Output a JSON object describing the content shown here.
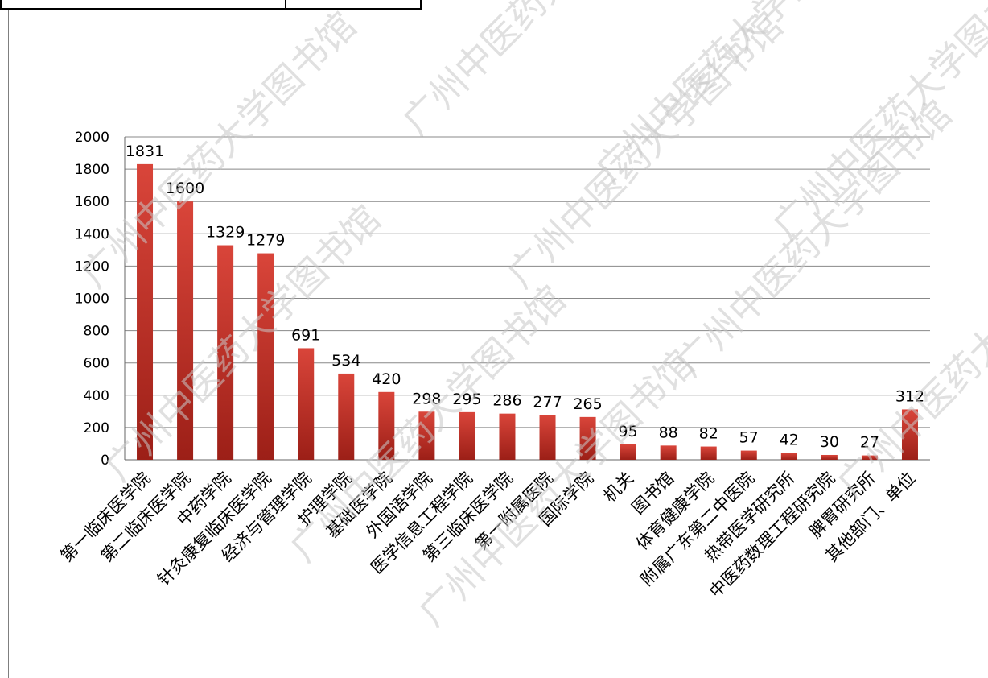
{
  "colors": {
    "bar": "#c0392b",
    "bar_dark": "#8e1a12",
    "grid": "#888888",
    "watermark": "#c8c8c8"
  },
  "watermark_text": "广州中医药大学图书馆",
  "chart_data": {
    "type": "bar",
    "categories": [
      "第一临床医学院",
      "第二临床医学院",
      "中药学院",
      "针灸康复临床医学院",
      "经济与管理学院",
      "护理学院",
      "基础医学院",
      "外国语学院",
      "医学信息工程学院",
      "第三临床医学院",
      "第一附属医院",
      "国际学院",
      "机关",
      "图书馆",
      "体育健康学院",
      "附属广东第二中医院",
      "热带医学研究所",
      "中医药数理工程研究院",
      "脾胃研究所",
      "其他部门、单位"
    ],
    "values": [
      1831,
      1600,
      1329,
      1279,
      691,
      534,
      420,
      298,
      295,
      286,
      277,
      265,
      95,
      88,
      82,
      57,
      42,
      30,
      27,
      312
    ],
    "yticks": [
      0,
      200,
      400,
      600,
      800,
      1000,
      1200,
      1400,
      1600,
      1800,
      2000
    ],
    "ylim": [
      0,
      2000
    ],
    "grid": true,
    "title": "",
    "xlabel": "",
    "ylabel": ""
  }
}
